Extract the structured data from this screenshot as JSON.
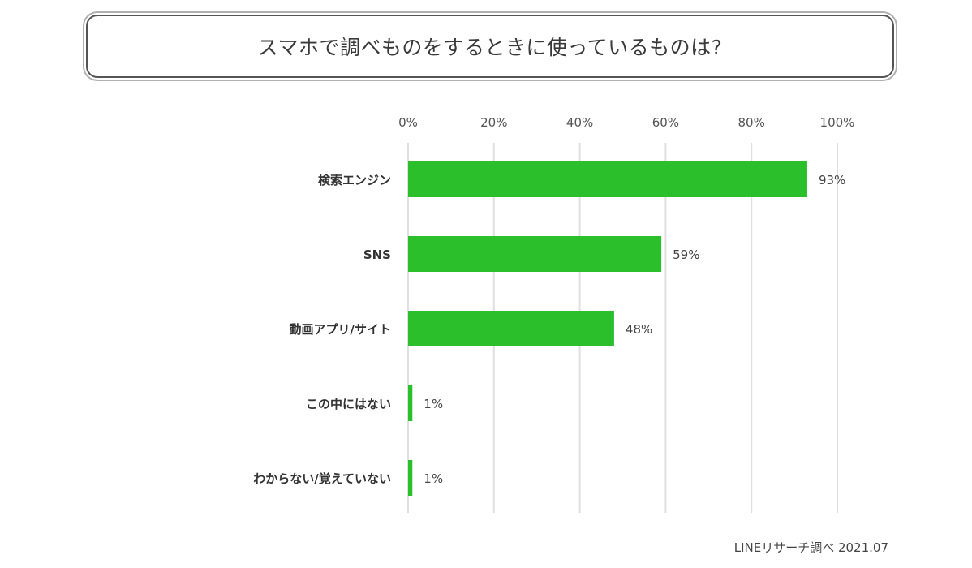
{
  "title": "スマホで調べものをするときに使っているものは?",
  "source": "LINEリサーチ調べ 2021.07",
  "chart_data": {
    "type": "bar",
    "orientation": "horizontal",
    "categories": [
      "検索エンジン",
      "SNS",
      "動画アプリ/サイト",
      "この中にはない",
      "わからない/覚えていない"
    ],
    "values": [
      93,
      59,
      48,
      1,
      1
    ],
    "value_labels": [
      "93%",
      "59%",
      "48%",
      "1%",
      "1%"
    ],
    "xlim": [
      0,
      100
    ],
    "x_ticks": [
      0,
      20,
      40,
      60,
      80,
      100
    ],
    "x_tick_labels": [
      "0%",
      "20%",
      "40%",
      "60%",
      "80%",
      "100%"
    ],
    "x_axis_position": "top",
    "grid": true,
    "bar_color": "#2bc02b",
    "grid_color": "#e0e0e0"
  }
}
